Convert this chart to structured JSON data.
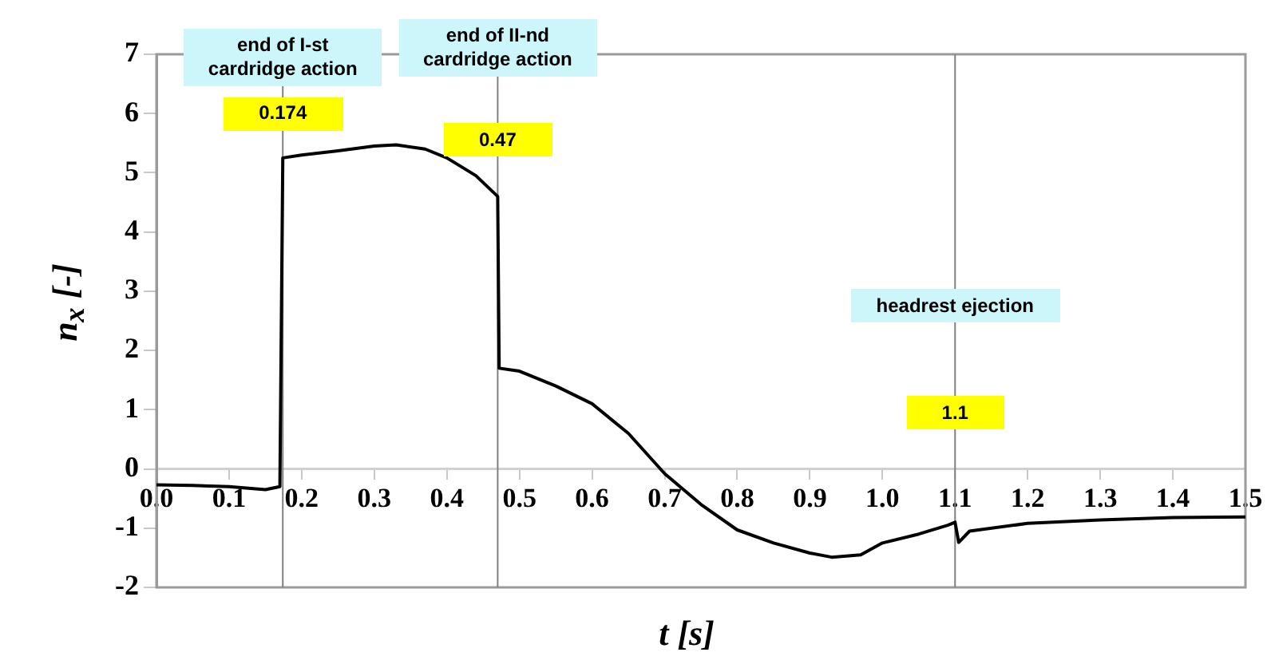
{
  "chart_data": {
    "type": "line",
    "xlabel": "t [s]",
    "ylabel": "n$_{x}$ [-]",
    "xlim": [
      0,
      1.5
    ],
    "xticks": [
      {
        "value": 0,
        "label": "0.0"
      },
      0.1,
      0.2,
      0.3,
      0.4,
      0.5,
      0.6,
      0.7,
      0.8,
      0.9,
      {
        "value": 1,
        "label": "1.0"
      },
      1.1,
      1.2,
      1.3,
      1.4,
      1.5
    ],
    "ylim": [
      -2,
      7
    ],
    "yticks": [
      -2,
      -1,
      0,
      1,
      2,
      3,
      4,
      5,
      6,
      7
    ],
    "grid": false,
    "legend": false,
    "marker": "none",
    "line_style": "solid",
    "series": [
      {
        "color": "#000000",
        "x": [
          0,
          0.05,
          0.1,
          0.15,
          0.17,
          0.174,
          0.2,
          0.25,
          0.3,
          0.33,
          0.37,
          0.4,
          0.44,
          0.47,
          0.472,
          0.5,
          0.55,
          0.6,
          0.65,
          0.7,
          0.75,
          0.8,
          0.85,
          0.9,
          0.93,
          0.97,
          1.0,
          1.05,
          1.09,
          1.1,
          1.105,
          1.12,
          1.2,
          1.3,
          1.4,
          1.5
        ],
        "values": [
          -0.27,
          -0.28,
          -0.3,
          -0.35,
          -0.3,
          5.25,
          5.3,
          5.37,
          5.45,
          5.47,
          5.4,
          5.25,
          4.95,
          4.6,
          1.7,
          1.65,
          1.4,
          1.1,
          0.6,
          -0.08,
          -0.6,
          -1.03,
          -1.25,
          -1.42,
          -1.49,
          -1.45,
          -1.25,
          -1.1,
          -0.95,
          -0.9,
          -1.24,
          -1.05,
          -0.92,
          -0.86,
          -0.82,
          -0.81
        ]
      }
    ],
    "ref_lines": [
      {
        "axis": "x",
        "value": 0.174,
        "color": "#808080"
      },
      {
        "axis": "x",
        "value": 0.47,
        "color": "#808080"
      },
      {
        "axis": "x",
        "value": 1.1,
        "color": "#808080"
      }
    ],
    "annotations": [
      {
        "text": "end of I-st\ncardridge action",
        "x": 0.174,
        "y": 6.95
      },
      {
        "text": "end of II-nd\ncardridge action",
        "x": 0.47,
        "y": 7.1
      },
      {
        "text": "headrest ejection",
        "x": 1.1,
        "y": 2.75
      },
      {
        "text": "0.174",
        "x": 0.174,
        "y": 6.0
      },
      {
        "text": "0.47",
        "x": 0.47,
        "y": 5.55
      },
      {
        "text": "1.1",
        "x": 1.1,
        "y": 0.95
      }
    ]
  }
}
